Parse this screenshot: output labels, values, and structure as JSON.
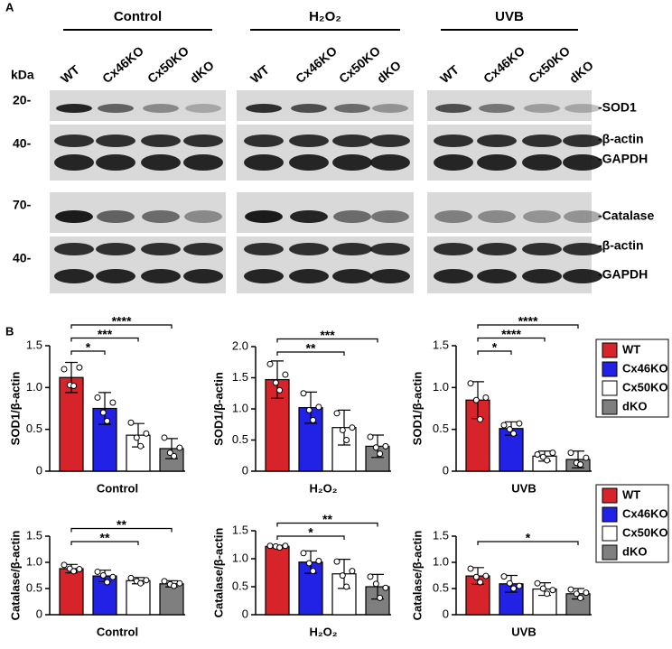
{
  "panel_a": {
    "label": "A",
    "groups": [
      {
        "title": "Control",
        "lanes": [
          "WT",
          "Cx46KO",
          "Cx50KO",
          "dKO"
        ]
      },
      {
        "title": "H₂O₂",
        "lanes": [
          "WT",
          "Cx46KO",
          "Cx50KO",
          "dKO"
        ]
      },
      {
        "title": "UVB",
        "lanes": [
          "WT",
          "Cx46KO",
          "Cx50KO",
          "dKO"
        ]
      }
    ],
    "kda_title": "kDa",
    "markers": [
      "20-",
      "40-",
      "70-",
      "40-"
    ],
    "bands": [
      "-SOD1",
      "-β-actin",
      "-GAPDH",
      "-Catalase",
      "-β-actin",
      "-GAPDH"
    ]
  },
  "panel_b": {
    "label": "B"
  },
  "chart_data": [
    {
      "type": "bar",
      "ylabel": "SOD1/β-actin",
      "xlabel": "Control",
      "colors": [
        "#d7242a",
        "#2222e6",
        "#ffffff",
        "#7f7f7f"
      ],
      "values": [
        1.12,
        0.75,
        0.43,
        0.27
      ],
      "errors": [
        0.18,
        0.19,
        0.14,
        0.12
      ],
      "points": [
        [
          1.22,
          1.03,
          1.02,
          1.24
        ],
        [
          0.88,
          0.7,
          0.6,
          0.82
        ],
        [
          0.58,
          0.4,
          0.3,
          0.45
        ],
        [
          0.4,
          0.22,
          0.18,
          0.28
        ]
      ],
      "ylim": [
        0,
        1.5
      ],
      "yticks": [
        0,
        0.5,
        {
          "value": 1,
          "label": "1.0"
        },
        1.5
      ],
      "significance": [
        {
          "from": 0,
          "to": 1,
          "label": "*"
        },
        {
          "from": 0,
          "to": 2,
          "label": "***"
        },
        {
          "from": 0,
          "to": 3,
          "label": "****"
        }
      ]
    },
    {
      "type": "bar",
      "ylabel": "SOD1/β-actin",
      "xlabel": "H₂O₂",
      "colors": [
        "#d7242a",
        "#2222e6",
        "#ffffff",
        "#7f7f7f"
      ],
      "values": [
        1.47,
        1.02,
        0.7,
        0.4
      ],
      "errors": [
        0.3,
        0.25,
        0.28,
        0.18
      ],
      "points": [
        [
          1.72,
          1.42,
          1.3,
          1.55
        ],
        [
          1.25,
          0.98,
          0.82,
          1.03
        ],
        [
          0.93,
          0.66,
          0.5,
          0.7
        ],
        [
          0.55,
          0.38,
          0.28,
          0.4
        ]
      ],
      "ylim": [
        0,
        2
      ],
      "yticks": [
        0,
        0.5,
        {
          "value": 1,
          "label": "1.0"
        },
        1.5,
        {
          "value": 2,
          "label": "2.0"
        }
      ],
      "significance": [
        {
          "from": 0,
          "to": 2,
          "label": "**"
        },
        {
          "from": 0,
          "to": 3,
          "label": "***"
        }
      ]
    },
    {
      "type": "bar",
      "ylabel": "SOD1/β-actin",
      "xlabel": "UVB",
      "colors": [
        "#d7242a",
        "#2222e6",
        "#ffffff",
        "#7f7f7f"
      ],
      "legend": [
        "WT",
        "Cx46KO",
        "Cx50KO",
        "dKO"
      ],
      "values": [
        0.85,
        0.51,
        0.18,
        0.14
      ],
      "errors": [
        0.22,
        0.08,
        0.06,
        0.1
      ],
      "points": [
        [
          1.05,
          0.85,
          0.62,
          0.88
        ],
        [
          0.55,
          0.5,
          0.45,
          0.57
        ],
        [
          0.2,
          0.17,
          0.13,
          0.22
        ],
        [
          0.22,
          0.1,
          0.08,
          0.16
        ]
      ],
      "ylim": [
        0,
        1.5
      ],
      "yticks": [
        0,
        0.5,
        {
          "value": 1,
          "label": "1.0"
        },
        1.5
      ],
      "significance": [
        {
          "from": 0,
          "to": 1,
          "label": "*"
        },
        {
          "from": 0,
          "to": 2,
          "label": "****"
        },
        {
          "from": 0,
          "to": 3,
          "label": "****"
        }
      ]
    },
    {
      "type": "bar",
      "ylabel": "Catalase/β-actin",
      "xlabel": "Control",
      "colors": [
        "#d7242a",
        "#2222e6",
        "#ffffff",
        "#7f7f7f"
      ],
      "values": [
        0.88,
        0.74,
        0.65,
        0.59
      ],
      "errors": [
        0.08,
        0.11,
        0.06,
        0.06
      ],
      "points": [
        [
          0.95,
          0.88,
          0.83,
          0.87
        ],
        [
          0.82,
          0.75,
          0.62,
          0.72
        ],
        [
          0.7,
          0.64,
          0.6,
          0.66
        ],
        [
          0.64,
          0.58,
          0.55,
          0.6
        ]
      ],
      "ylim": [
        0,
        1.5
      ],
      "yticks": [
        0,
        0.5,
        {
          "value": 1,
          "label": "1.0"
        },
        1.5
      ],
      "significance": [
        {
          "from": 0,
          "to": 2,
          "label": "**"
        },
        {
          "from": 0,
          "to": 3,
          "label": "**"
        }
      ]
    },
    {
      "type": "bar",
      "ylabel": "Catalase/β-actin",
      "xlabel": "H₂O₂",
      "colors": [
        "#d7242a",
        "#2222e6",
        "#ffffff",
        "#7f7f7f"
      ],
      "values": [
        1.22,
        0.94,
        0.73,
        0.5
      ],
      "errors": [
        0.02,
        0.2,
        0.26,
        0.22
      ],
      "points": [
        [
          1.23,
          1.22,
          1.2,
          1.23
        ],
        [
          1.1,
          0.92,
          0.78,
          0.96
        ],
        [
          0.95,
          0.7,
          0.5,
          0.78
        ],
        [
          0.68,
          0.55,
          0.3,
          0.48
        ]
      ],
      "ylim": [
        0,
        1.5
      ],
      "yticks": [
        0,
        0.5,
        {
          "value": 1,
          "label": "1.0"
        },
        1.5
      ],
      "significance": [
        {
          "from": 0,
          "to": 2,
          "label": "*"
        },
        {
          "from": 0,
          "to": 3,
          "label": "**"
        }
      ]
    },
    {
      "type": "bar",
      "ylabel": "Catalase/β-actin",
      "xlabel": "UVB",
      "colors": [
        "#d7242a",
        "#2222e6",
        "#ffffff",
        "#7f7f7f"
      ],
      "legend": [
        "WT",
        "Cx46KO",
        "Cx50KO",
        "dKO"
      ],
      "values": [
        0.74,
        0.59,
        0.49,
        0.4
      ],
      "errors": [
        0.16,
        0.16,
        0.12,
        0.1
      ],
      "points": [
        [
          0.88,
          0.72,
          0.62,
          0.74
        ],
        [
          0.73,
          0.6,
          0.5,
          0.55
        ],
        [
          0.6,
          0.5,
          0.4,
          0.47
        ],
        [
          0.48,
          0.4,
          0.32,
          0.42
        ]
      ],
      "ylim": [
        0,
        1.5
      ],
      "yticks": [
        0,
        0.5,
        {
          "value": 1,
          "label": "1.0"
        },
        1.5
      ],
      "significance": [
        {
          "from": 0,
          "to": 3,
          "label": "*"
        }
      ]
    }
  ]
}
